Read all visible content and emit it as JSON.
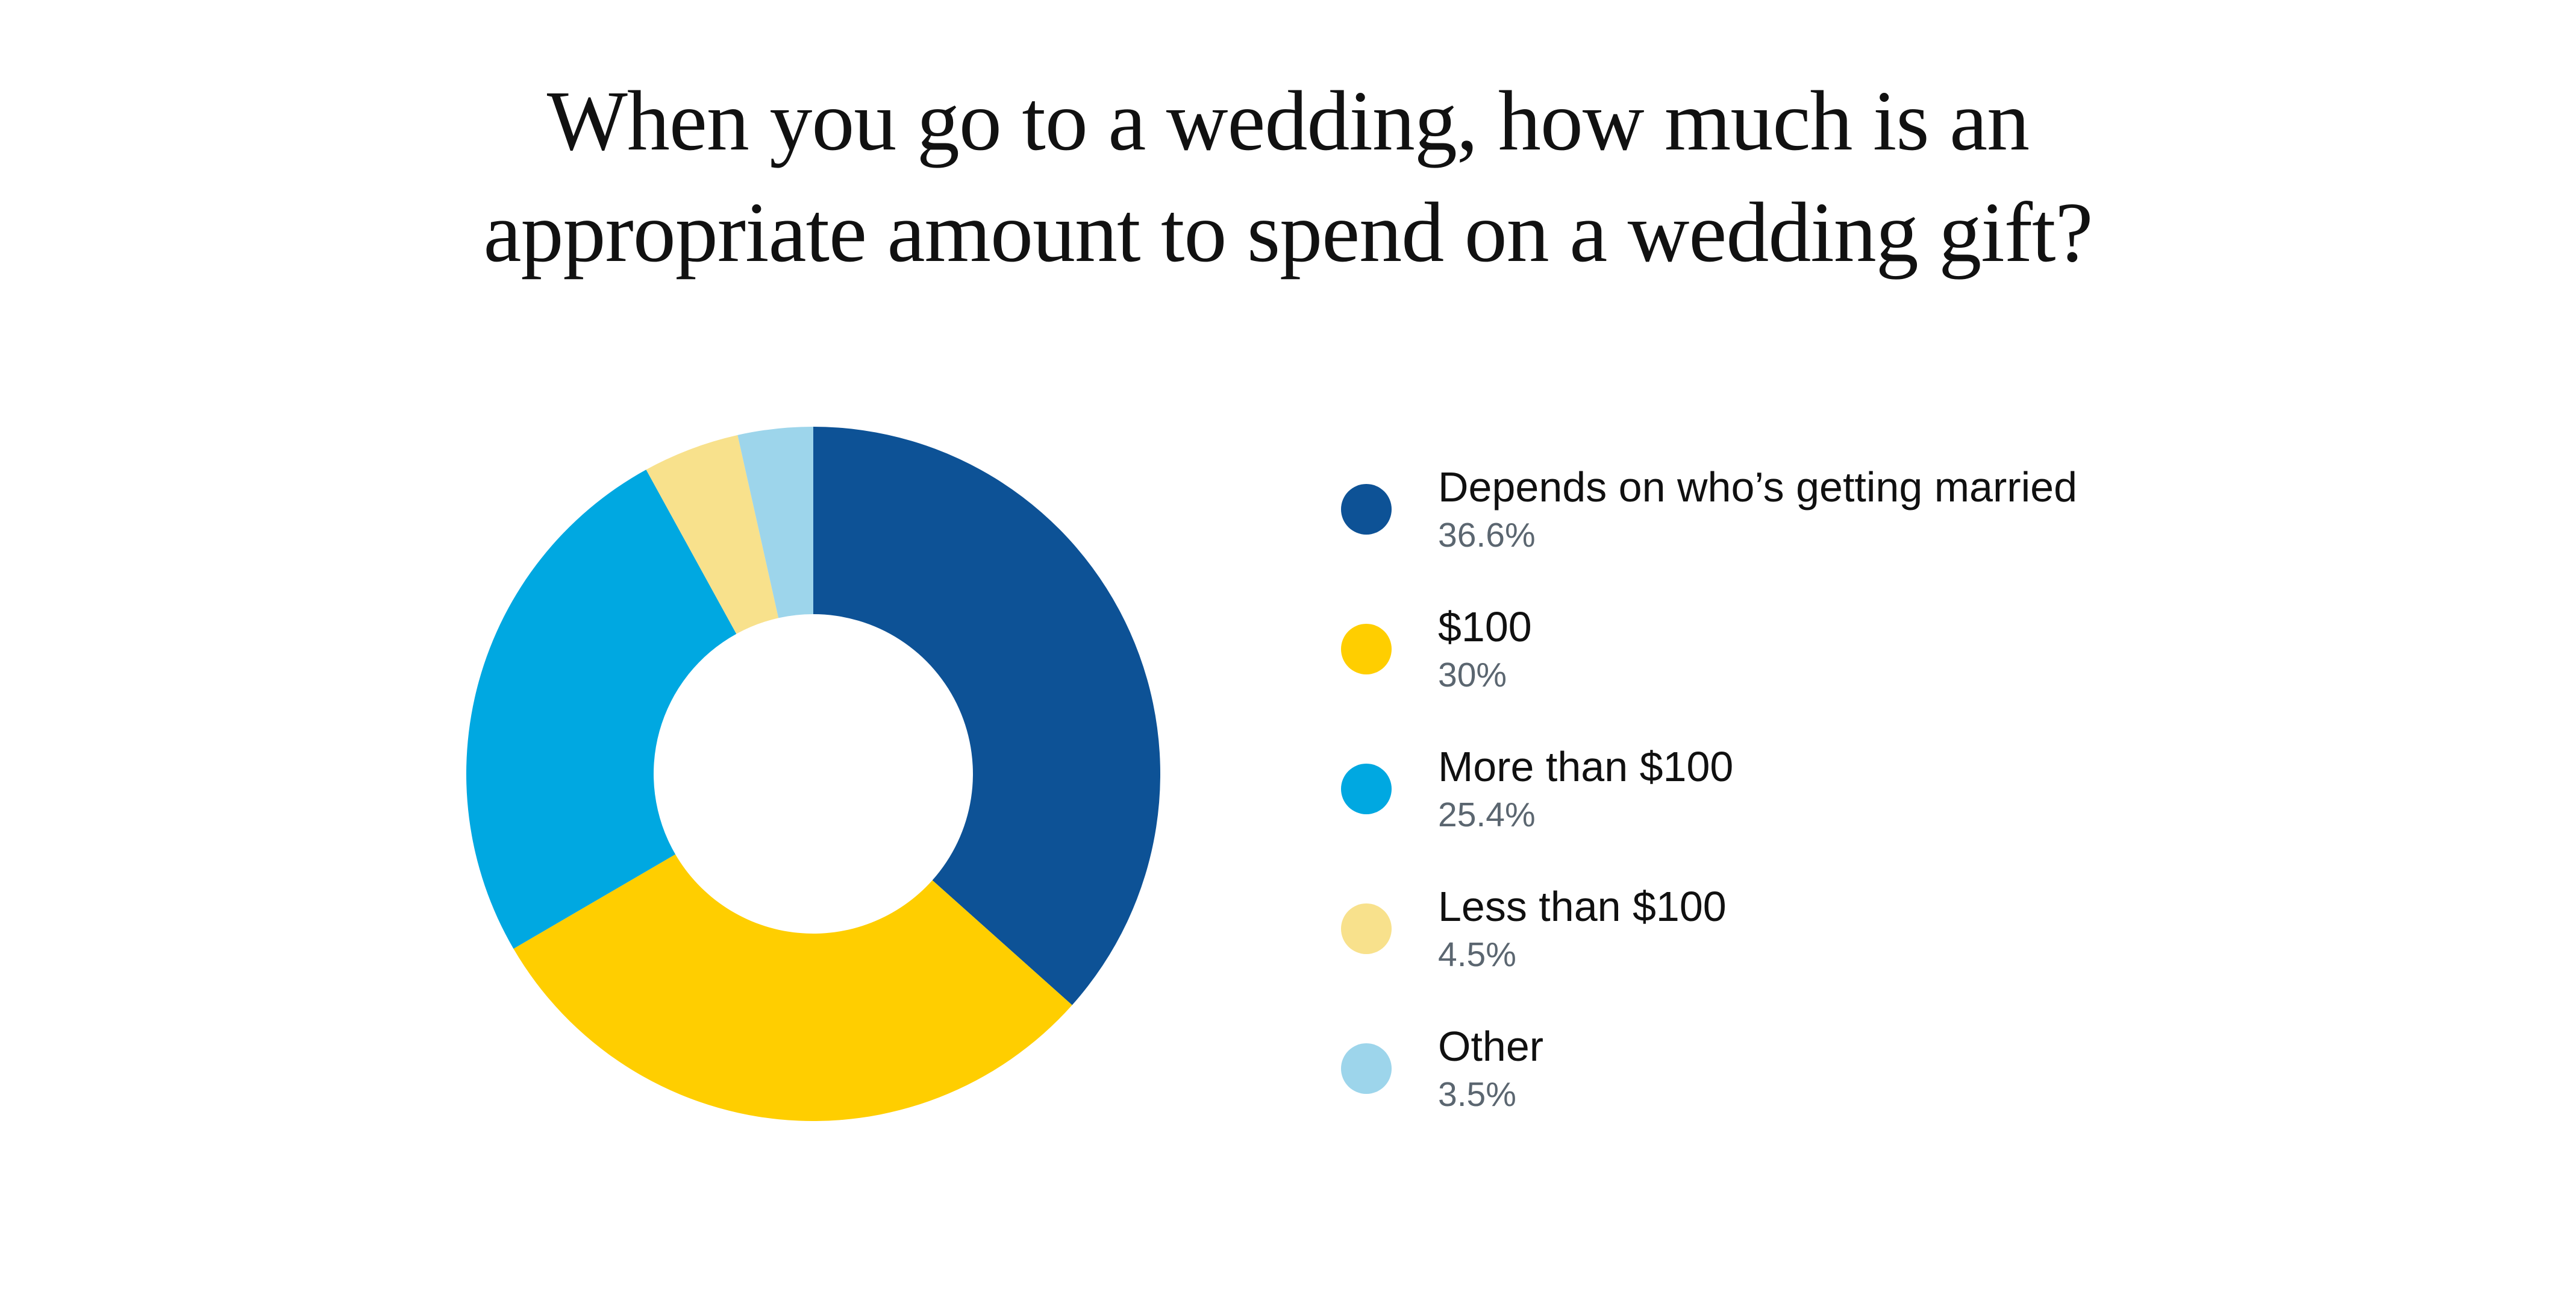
{
  "page": {
    "background_color": "#ffffff"
  },
  "header": {
    "title_lines": [
      "When you go to a wedding, how much is an",
      "appropriate amount to spend on a wedding gift?"
    ]
  },
  "chart_data": {
    "type": "pie",
    "subtype": "donut",
    "title": "When you go to a wedding, how much is an appropriate amount to spend on a wedding gift?",
    "legend_position": "right",
    "donut_hole_ratio": 0.46,
    "start_angle_deg": 0,
    "direction": "clockwise",
    "categories": [
      "Depends on who’s getting married",
      "$100",
      "More than $100",
      "Less than $100",
      "Other"
    ],
    "values": [
      36.6,
      30,
      25.4,
      4.5,
      3.5
    ],
    "slices": [
      {
        "label": "Depends on who’s getting married",
        "value": 36.6,
        "pct_label": "36.6%",
        "color": "#0D5296"
      },
      {
        "label": "$100",
        "value": 30,
        "pct_label": "30%",
        "color": "#FFCE00"
      },
      {
        "label": "More than $100",
        "value": 25.4,
        "pct_label": "25.4%",
        "color": "#00A8E1"
      },
      {
        "label": "Less than $100",
        "value": 4.5,
        "pct_label": "4.5%",
        "color": "#F8E18C"
      },
      {
        "label": "Other",
        "value": 3.5,
        "pct_label": "3.5%",
        "color": "#9DD5EB"
      }
    ],
    "text_colors": {
      "title": "#111111",
      "legend_label": "#101010",
      "legend_percent": "#5B6670"
    }
  }
}
